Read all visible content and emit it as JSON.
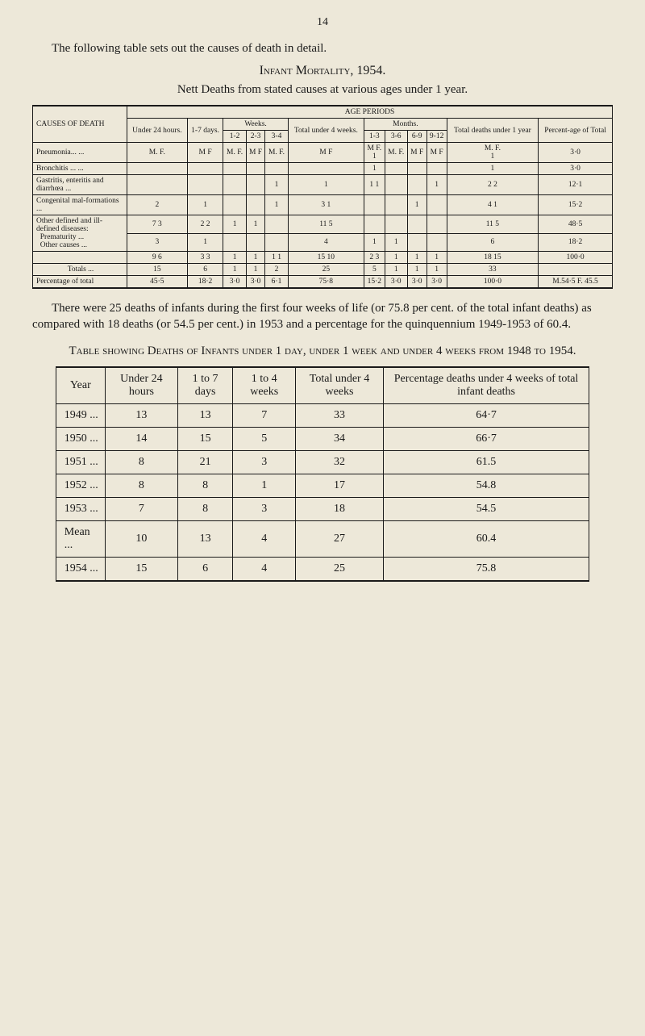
{
  "page_number": "14",
  "intro_text": "The following table sets out the causes of death in detail.",
  "main_title": "Infant Mortality, 1954.",
  "main_subtitle": "Nett Deaths from stated causes at various ages under 1 year.",
  "table1": {
    "age_periods_label": "AGE PERIODS",
    "header": {
      "causes": "CAUSES OF DEATH",
      "under24": "Under 24 hours.",
      "days17": "1-7 days.",
      "weeks": "Weeks.",
      "w12": "1-2",
      "w23": "2-3",
      "w34": "3-4",
      "total_under4": "Total under 4 weeks.",
      "months": "Months.",
      "m13": "1-3",
      "m36": "3-6",
      "m69": "6-9",
      "m912": "9-12",
      "total_under1": "Total deaths under 1 year",
      "pct": "Percent-age of Total"
    },
    "mf_label": "M. F.",
    "mf_label2": "M  F",
    "rows": [
      {
        "cause": "Pneumonia...   ...",
        "m13": "1",
        "total_year": "1",
        "pct": "3·0"
      },
      {
        "cause": "Bronchitis ...   ...",
        "m13": "1",
        "total_year": "1",
        "pct": "3·0"
      },
      {
        "cause": "Gastritis, enteritis and diarrhœa ...",
        "w34": "1",
        "total4": "1",
        "m13": "1 1",
        "m912": "1",
        "total_year": "2  2",
        "pct": "12·1"
      },
      {
        "cause": "Congenital mal-formations    ...",
        "u24": "2",
        "d17": "1",
        "w34": "1",
        "total4": "3  1",
        "m69": "1",
        "total_year": "4  1",
        "pct": "15·2"
      },
      {
        "cause": "Other defined and ill-defined diseases:",
        "sub1": "Prematurity   ...",
        "sub2": "Other causes  ...",
        "u24_a": "7  3",
        "u24_b": "3",
        "d17_a": "2  2",
        "d17_b": "1",
        "w12_a": "1",
        "w23_a": "1",
        "total4_a": "11  5",
        "total4_b": "4",
        "m13_b": "1",
        "m36_b": "1",
        "total_year_a": "11  5",
        "total_year_b": "6",
        "pct_a": "48·5",
        "pct_b": "18·2"
      }
    ],
    "subtotal": {
      "u24": "9  6",
      "d17": "3  3",
      "w12": "1",
      "w23": "1",
      "w34": "1  1",
      "total4": "15 10",
      "m13": "2  3",
      "m36": "1",
      "m69": "1",
      "m912": "1",
      "total_year": "18 15",
      "pct": "100·0"
    },
    "totals": {
      "label": "Totals      ...",
      "u24": "15",
      "d17": "6",
      "w12": "1",
      "w23": "1",
      "w34": "2",
      "total4": "25",
      "m13": "5",
      "m36": "1",
      "m69": "1",
      "m912": "1",
      "total_year": "33"
    },
    "pct_row": {
      "label": "Percentage of total",
      "u24": "45·5",
      "d17": "18·2",
      "w12": "3·0",
      "w23": "3·0",
      "w34": "6·1",
      "total4": "75·8",
      "m13": "15·2",
      "m36": "3·0",
      "m69": "3·0",
      "m912": "3·0",
      "total_year": "100·0",
      "pct": "M.54·5 F. 45.5"
    }
  },
  "paragraph": "There were 25 deaths of infants during the first four weeks of life (or 75.8 per cent. of the total infant deaths) as compared with 18 deaths (or 54.5 per cent.) in 1953 and a percentage for the quinquennium 1949-1953 of 60.4.",
  "table2_title": "Table showing Deaths of Infants under 1 day, under 1 week and under 4 weeks from 1948 to 1954.",
  "table2": {
    "columns": [
      "Year",
      "Under 24 hours",
      "1 to 7 days",
      "1 to 4 weeks",
      "Total under 4 weeks",
      "Percentage deaths under 4 weeks of total infant deaths"
    ],
    "rows": [
      [
        "1949",
        "13",
        "13",
        "7",
        "33",
        "64·7"
      ],
      [
        "1950",
        "14",
        "15",
        "5",
        "34",
        "66·7"
      ],
      [
        "1951",
        "8",
        "21",
        "3",
        "32",
        "61.5"
      ],
      [
        "1952",
        "8",
        "8",
        "1",
        "17",
        "54.8"
      ],
      [
        "1953",
        "7",
        "8",
        "3",
        "18",
        "54.5"
      ]
    ],
    "mean": [
      "Mean",
      "10",
      "13",
      "4",
      "27",
      "60.4"
    ],
    "last": [
      "1954",
      "15",
      "6",
      "4",
      "25",
      "75.8"
    ]
  }
}
